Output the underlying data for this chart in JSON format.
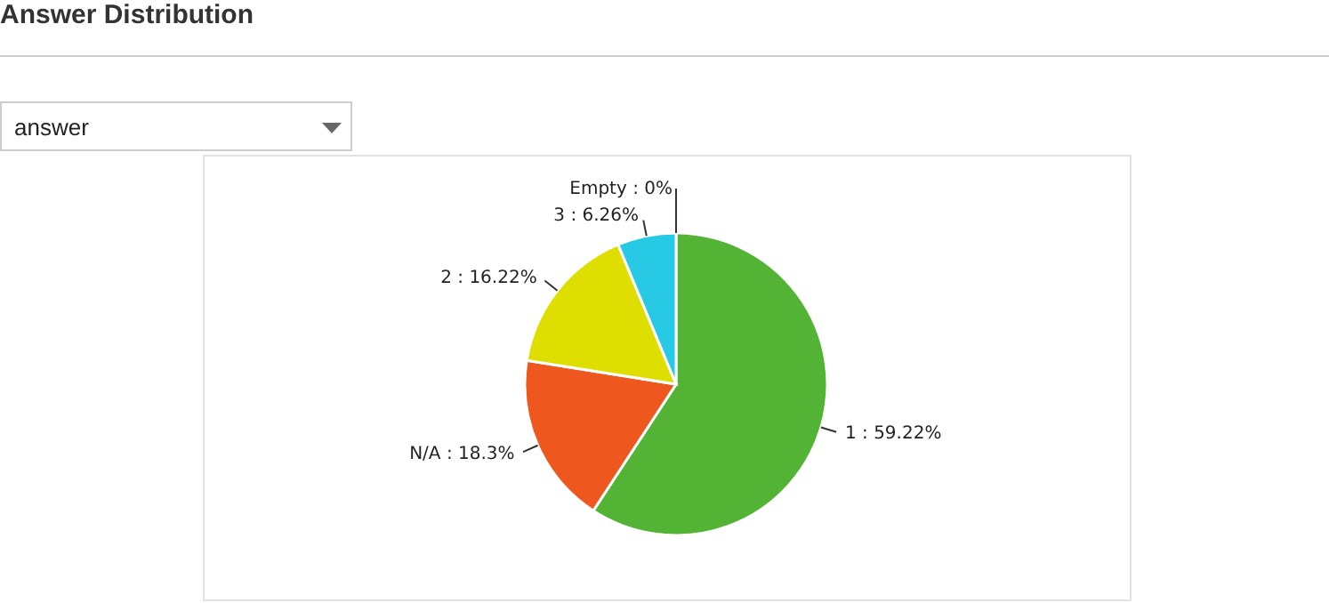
{
  "chart_data": {
    "type": "pie",
    "title": "Answer Distribution",
    "categories": [
      "1",
      "N/A",
      "2",
      "3",
      "Empty"
    ],
    "values": [
      59.22,
      18.3,
      16.22,
      6.26,
      0
    ],
    "colors": [
      "#52b335",
      "#ee581e",
      "#dede00",
      "#27c9e4",
      "#8e44ad"
    ],
    "value_labels": [
      ": 59.22%",
      ": 18.3%",
      ": 16.22%",
      ": 6.26%",
      ": 0%"
    ],
    "annotations": [
      "answer"
    ],
    "legend": false
  }
}
